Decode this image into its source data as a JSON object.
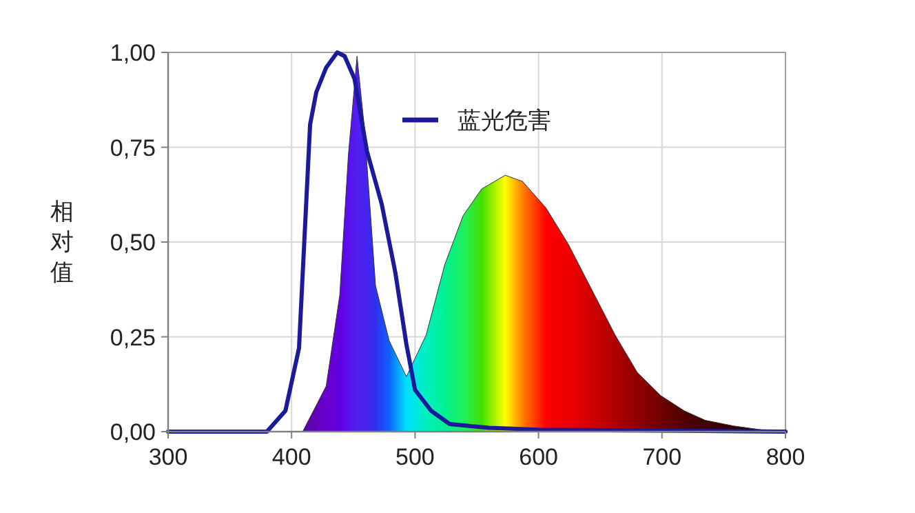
{
  "chart_data": {
    "type": "line",
    "ylabel": "相对值",
    "xlim": [
      300,
      800
    ],
    "ylim": [
      0,
      1
    ],
    "xticks": [
      300,
      400,
      500,
      600,
      700,
      800
    ],
    "yticks": [
      {
        "value": 0,
        "label": "0,00"
      },
      {
        "value": 0.25,
        "label": "0,25"
      },
      {
        "value": 0.5,
        "label": "0,50"
      },
      {
        "value": 0.75,
        "label": "0,75"
      },
      {
        "value": 1,
        "label": "1,00"
      }
    ],
    "grid": true,
    "legend": "top right",
    "series": [
      {
        "type": "area",
        "x": [
          409,
          428,
          439,
          446,
          453,
          459,
          468,
          479,
          493,
          509,
          524,
          539,
          554,
          573,
          587,
          606,
          624,
          643,
          662,
          680,
          699,
          718,
          735,
          758,
          780,
          800
        ],
        "values": [
          0,
          0.12,
          0.36,
          0.73,
          0.99,
          0.8,
          0.385,
          0.24,
          0.145,
          0.255,
          0.44,
          0.57,
          0.64,
          0.676,
          0.66,
          0.59,
          0.495,
          0.375,
          0.255,
          0.156,
          0.095,
          0.055,
          0.03,
          0.015,
          0.005,
          0
        ],
        "colors": [
          "#5a00a0",
          "#6a00d0",
          "#6000e0",
          "#5a10f0",
          "#5020f0",
          "#4a20f0",
          "#3030f0",
          "#1060ff",
          "#00e0ff",
          "#00f0c0",
          "#00f090",
          "#20f060",
          "#40e000",
          "#ffff00",
          "#ff8000",
          "#ff0000",
          "#f00000",
          "#d00000",
          "#b00000",
          "#900000",
          "#700000",
          "#500000",
          "#400000",
          "#300000",
          "#200000",
          "#100000"
        ]
      },
      {
        "name": "蓝光危害",
        "color": "#1a1a9a",
        "x": [
          300,
          380,
          395,
          406,
          415,
          420,
          428,
          437,
          443,
          451,
          461,
          473,
          484,
          493,
          500,
          513,
          528,
          560,
          600,
          800
        ],
        "values": [
          0,
          0,
          0.055,
          0.22,
          0.81,
          0.895,
          0.96,
          1.0,
          0.99,
          0.93,
          0.74,
          0.6,
          0.42,
          0.23,
          0.11,
          0.055,
          0.02,
          0.01,
          0.005,
          0
        ]
      }
    ]
  }
}
